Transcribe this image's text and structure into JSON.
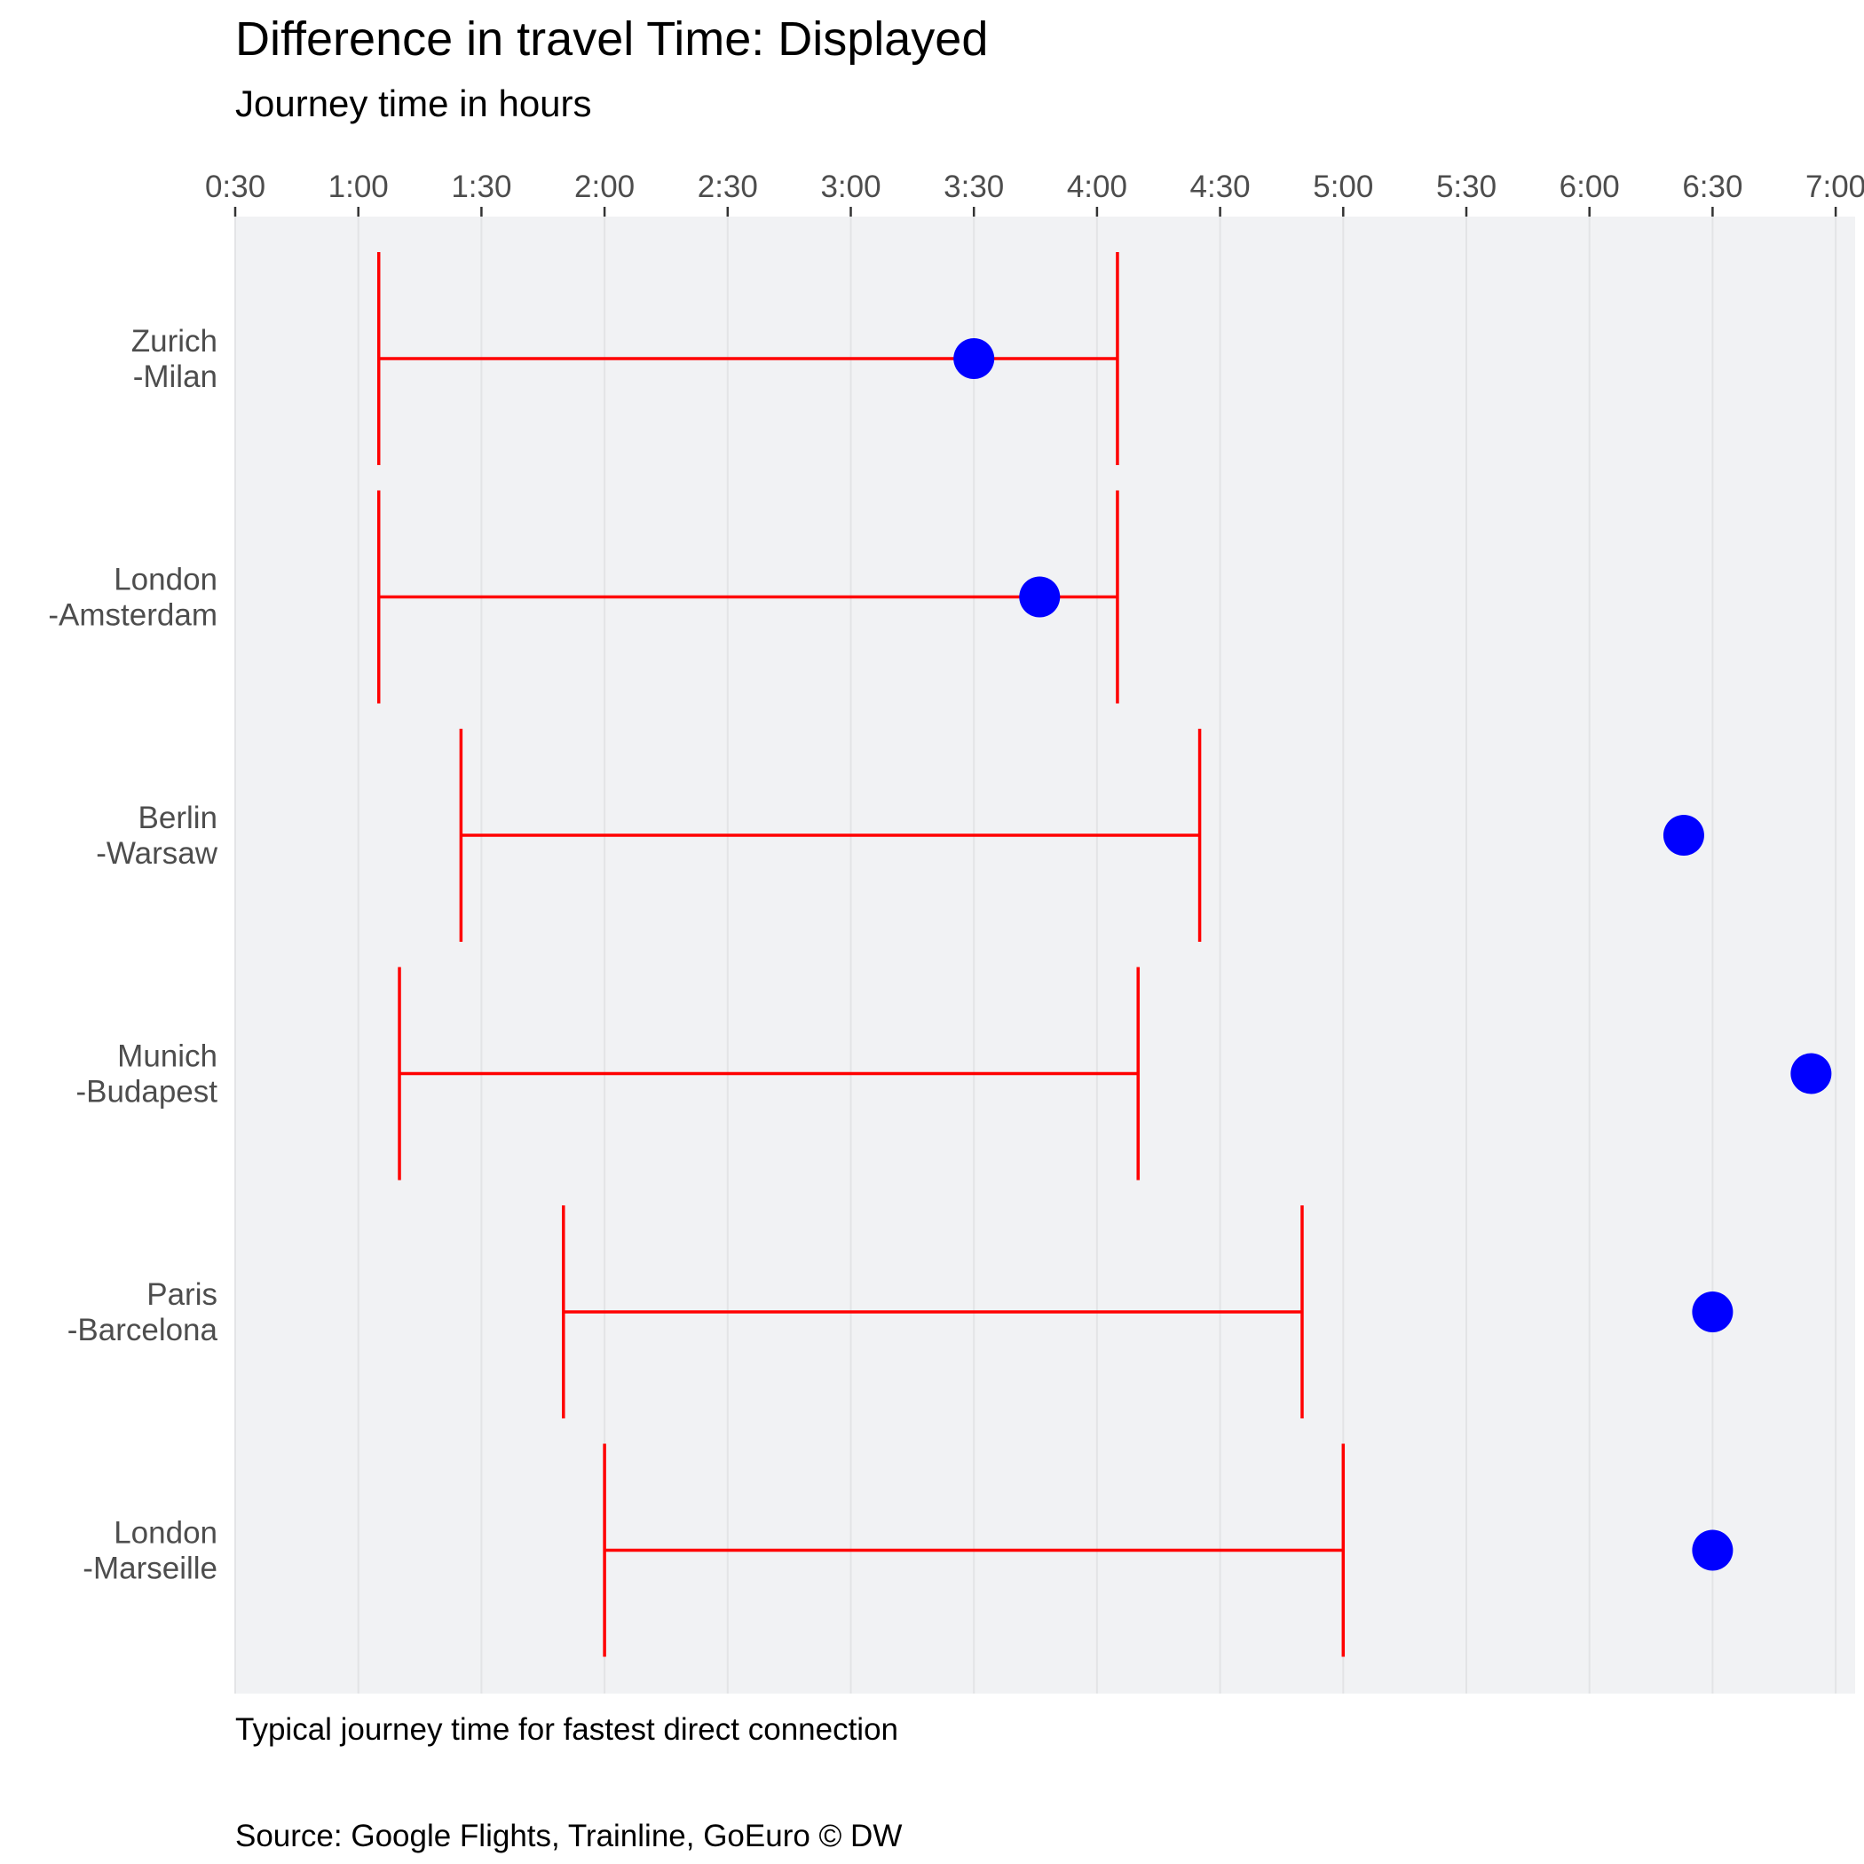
{
  "chart_data": {
    "type": "dot-range",
    "title": "Difference in travel Time: Displayed",
    "subtitle": "Journey time in hours",
    "xlabel": "Typical journey time for fastest direct connection",
    "source": "Source: Google Flights, Trainline, GoEuro © DW",
    "x_ticks": [
      "0:30",
      "1:00",
      "1:30",
      "2:00",
      "2:30",
      "3:00",
      "3:30",
      "4:00",
      "4:30",
      "5:00",
      "5:30",
      "6:00",
      "6:30",
      "7:00"
    ],
    "xlim_hours": [
      0.5,
      7.08
    ],
    "grid": "vertical",
    "categories": [
      {
        "label_lines": [
          "Zurich",
          "-Milan"
        ],
        "range": [
          1.083,
          4.083
        ],
        "point": 3.5
      },
      {
        "label_lines": [
          "London",
          "-Amsterdam"
        ],
        "range": [
          1.083,
          4.083
        ],
        "point": 3.767
      },
      {
        "label_lines": [
          "Berlin",
          "-Warsaw"
        ],
        "range": [
          1.417,
          4.417
        ],
        "point": 6.383
      },
      {
        "label_lines": [
          "Munich",
          "-Budapest"
        ],
        "range": [
          1.167,
          4.167
        ],
        "point": 6.9
      },
      {
        "label_lines": [
          "Paris",
          "-Barcelona"
        ],
        "range": [
          1.833,
          4.833
        ],
        "point": 6.5
      },
      {
        "label_lines": [
          "London",
          "-Marseille"
        ],
        "range": [
          2.0,
          5.0
        ],
        "point": 6.5
      }
    ],
    "colors": {
      "range": "#ff0000",
      "point": "#0000ff",
      "panel": "#f1f2f4",
      "grid": "#e3e4e6"
    }
  }
}
